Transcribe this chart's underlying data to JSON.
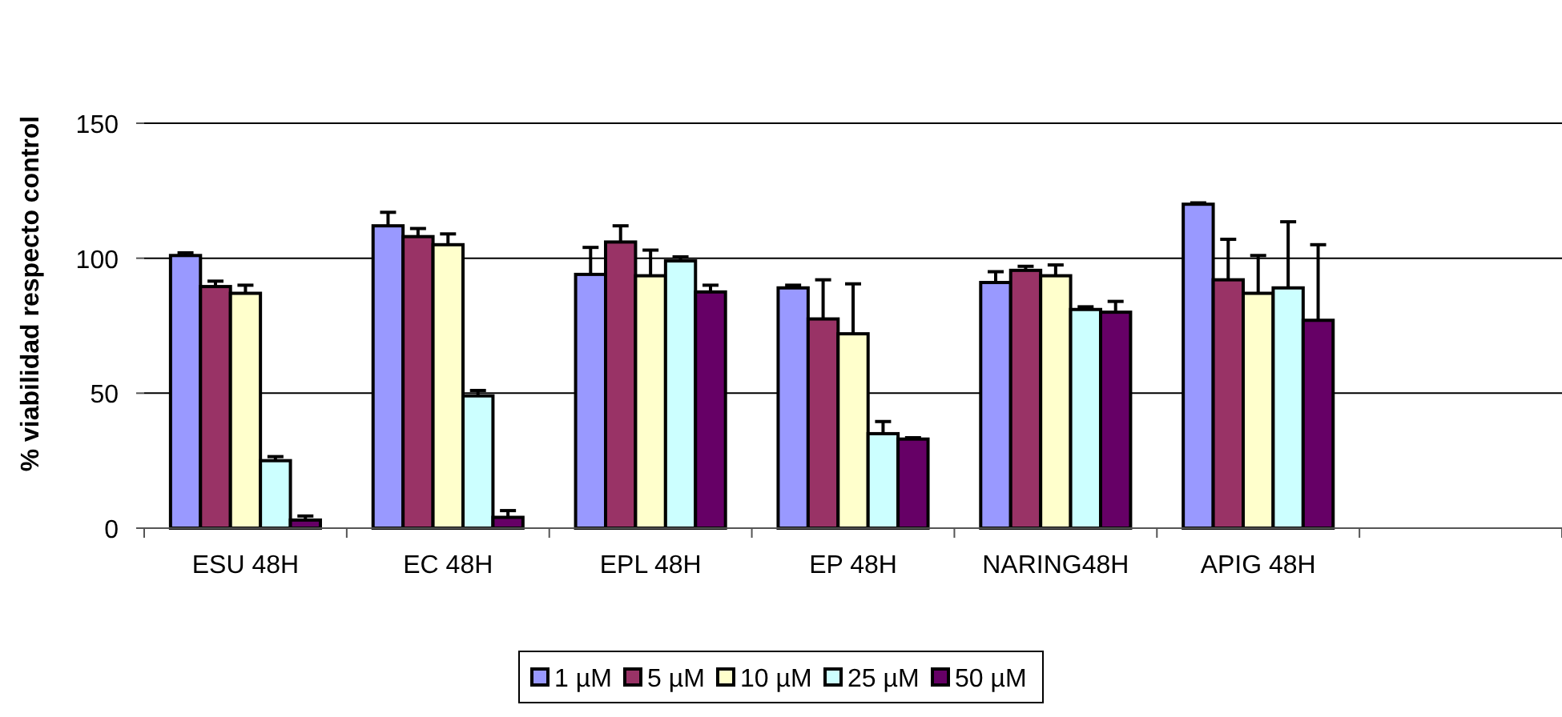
{
  "chart_data": {
    "type": "bar",
    "ylabel": "% viabilidad respecto control",
    "categories": [
      "ESU 48H",
      "EC 48H",
      "EPL 48H",
      "EP 48H",
      "NARING48H",
      "APIG 48H",
      null
    ],
    "ylim": [
      0,
      150
    ],
    "yticks": [
      0,
      50,
      100,
      150
    ],
    "grid": "y",
    "legend": "bottom",
    "series": [
      {
        "name": "1 µM",
        "color": "#9999ff",
        "values": [
          101,
          112,
          94,
          89,
          91,
          120,
          null
        ],
        "errors": [
          [
            101,
            102
          ],
          [
            112,
            117
          ],
          [
            94,
            104
          ],
          [
            89,
            90
          ],
          [
            91,
            95
          ],
          [
            120,
            120.5
          ],
          null
        ]
      },
      {
        "name": "5 µM",
        "color": "#993366",
        "values": [
          89.5,
          108,
          106,
          77.5,
          95.5,
          92,
          null
        ],
        "errors": [
          [
            89.5,
            91.5
          ],
          [
            108,
            111
          ],
          [
            106,
            112
          ],
          [
            77.5,
            92
          ],
          [
            95.5,
            97
          ],
          [
            92,
            107
          ],
          null
        ]
      },
      {
        "name": "10 µM",
        "color": "#ffffcc",
        "values": [
          87,
          105,
          93.5,
          72,
          93.5,
          87,
          null
        ],
        "errors": [
          [
            87,
            90
          ],
          [
            105,
            109
          ],
          [
            93.5,
            103
          ],
          [
            72,
            90.5
          ],
          [
            93.5,
            97.5
          ],
          [
            87,
            101
          ],
          null
        ]
      },
      {
        "name": "25 µM",
        "color": "#ccffff",
        "values": [
          25,
          49,
          99,
          35,
          81,
          89,
          null
        ],
        "errors": [
          [
            25,
            26.5
          ],
          [
            49,
            51
          ],
          [
            99,
            100.5
          ],
          [
            35,
            39.5
          ],
          [
            81,
            82
          ],
          [
            89,
            113.5
          ],
          null
        ]
      },
      {
        "name": "50 µM",
        "color": "#660066",
        "values": [
          3,
          4,
          87.5,
          33,
          80,
          77,
          null
        ],
        "errors": [
          [
            3,
            4.5
          ],
          [
            4,
            6.5
          ],
          [
            87.5,
            90
          ],
          [
            33,
            33.5
          ],
          [
            80,
            84
          ],
          [
            77,
            105
          ],
          null
        ]
      }
    ]
  }
}
